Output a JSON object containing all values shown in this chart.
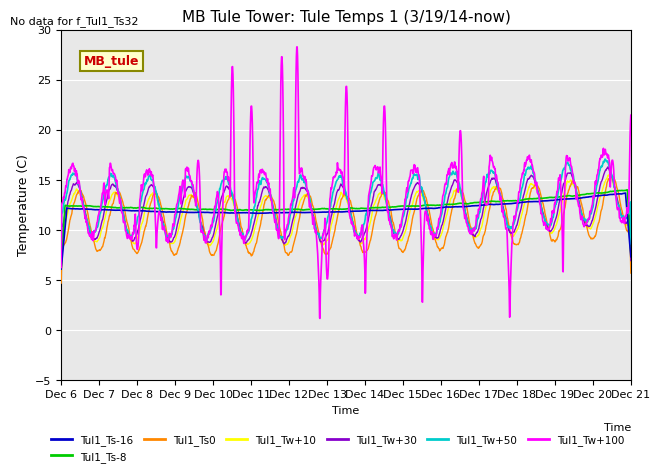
{
  "title": "MB Tule Tower: Tule Temps 1 (3/19/14-now)",
  "no_data_text": "No data for f_Tul1_Ts32",
  "ylabel": "Temperature (C)",
  "xlabel": "Time",
  "ylim": [
    -5,
    30
  ],
  "xlim": [
    0,
    15
  ],
  "yticks": [
    -5,
    0,
    5,
    10,
    15,
    20,
    25,
    30
  ],
  "xtick_labels": [
    "Dec 6",
    "Dec 7",
    "Dec 8",
    "Dec 9",
    "Dec 10",
    "Dec 11",
    "Dec 12",
    "Dec 13",
    "Dec 14",
    "Dec 15",
    "Dec 16",
    "Dec 17",
    "Dec 18",
    "Dec 19",
    "Dec 20",
    "Dec 21"
  ],
  "series_colors": {
    "Tul1_Ts-16": "#0000cc",
    "Tul1_Ts-8": "#00cc00",
    "Tul1_Ts0": "#ff8800",
    "Tul1_Tw+10": "#ffff00",
    "Tul1_Tw+30": "#8800cc",
    "Tul1_Tw+50": "#00cccc",
    "Tul1_Tw+100": "#ff00ff"
  },
  "legend_label": "MB_tule",
  "legend_box_color": "#ffffcc",
  "legend_text_color": "#cc0000",
  "background_color": "#e8e8e8",
  "title_fontsize": 11,
  "label_fontsize": 9,
  "tick_fontsize": 8
}
